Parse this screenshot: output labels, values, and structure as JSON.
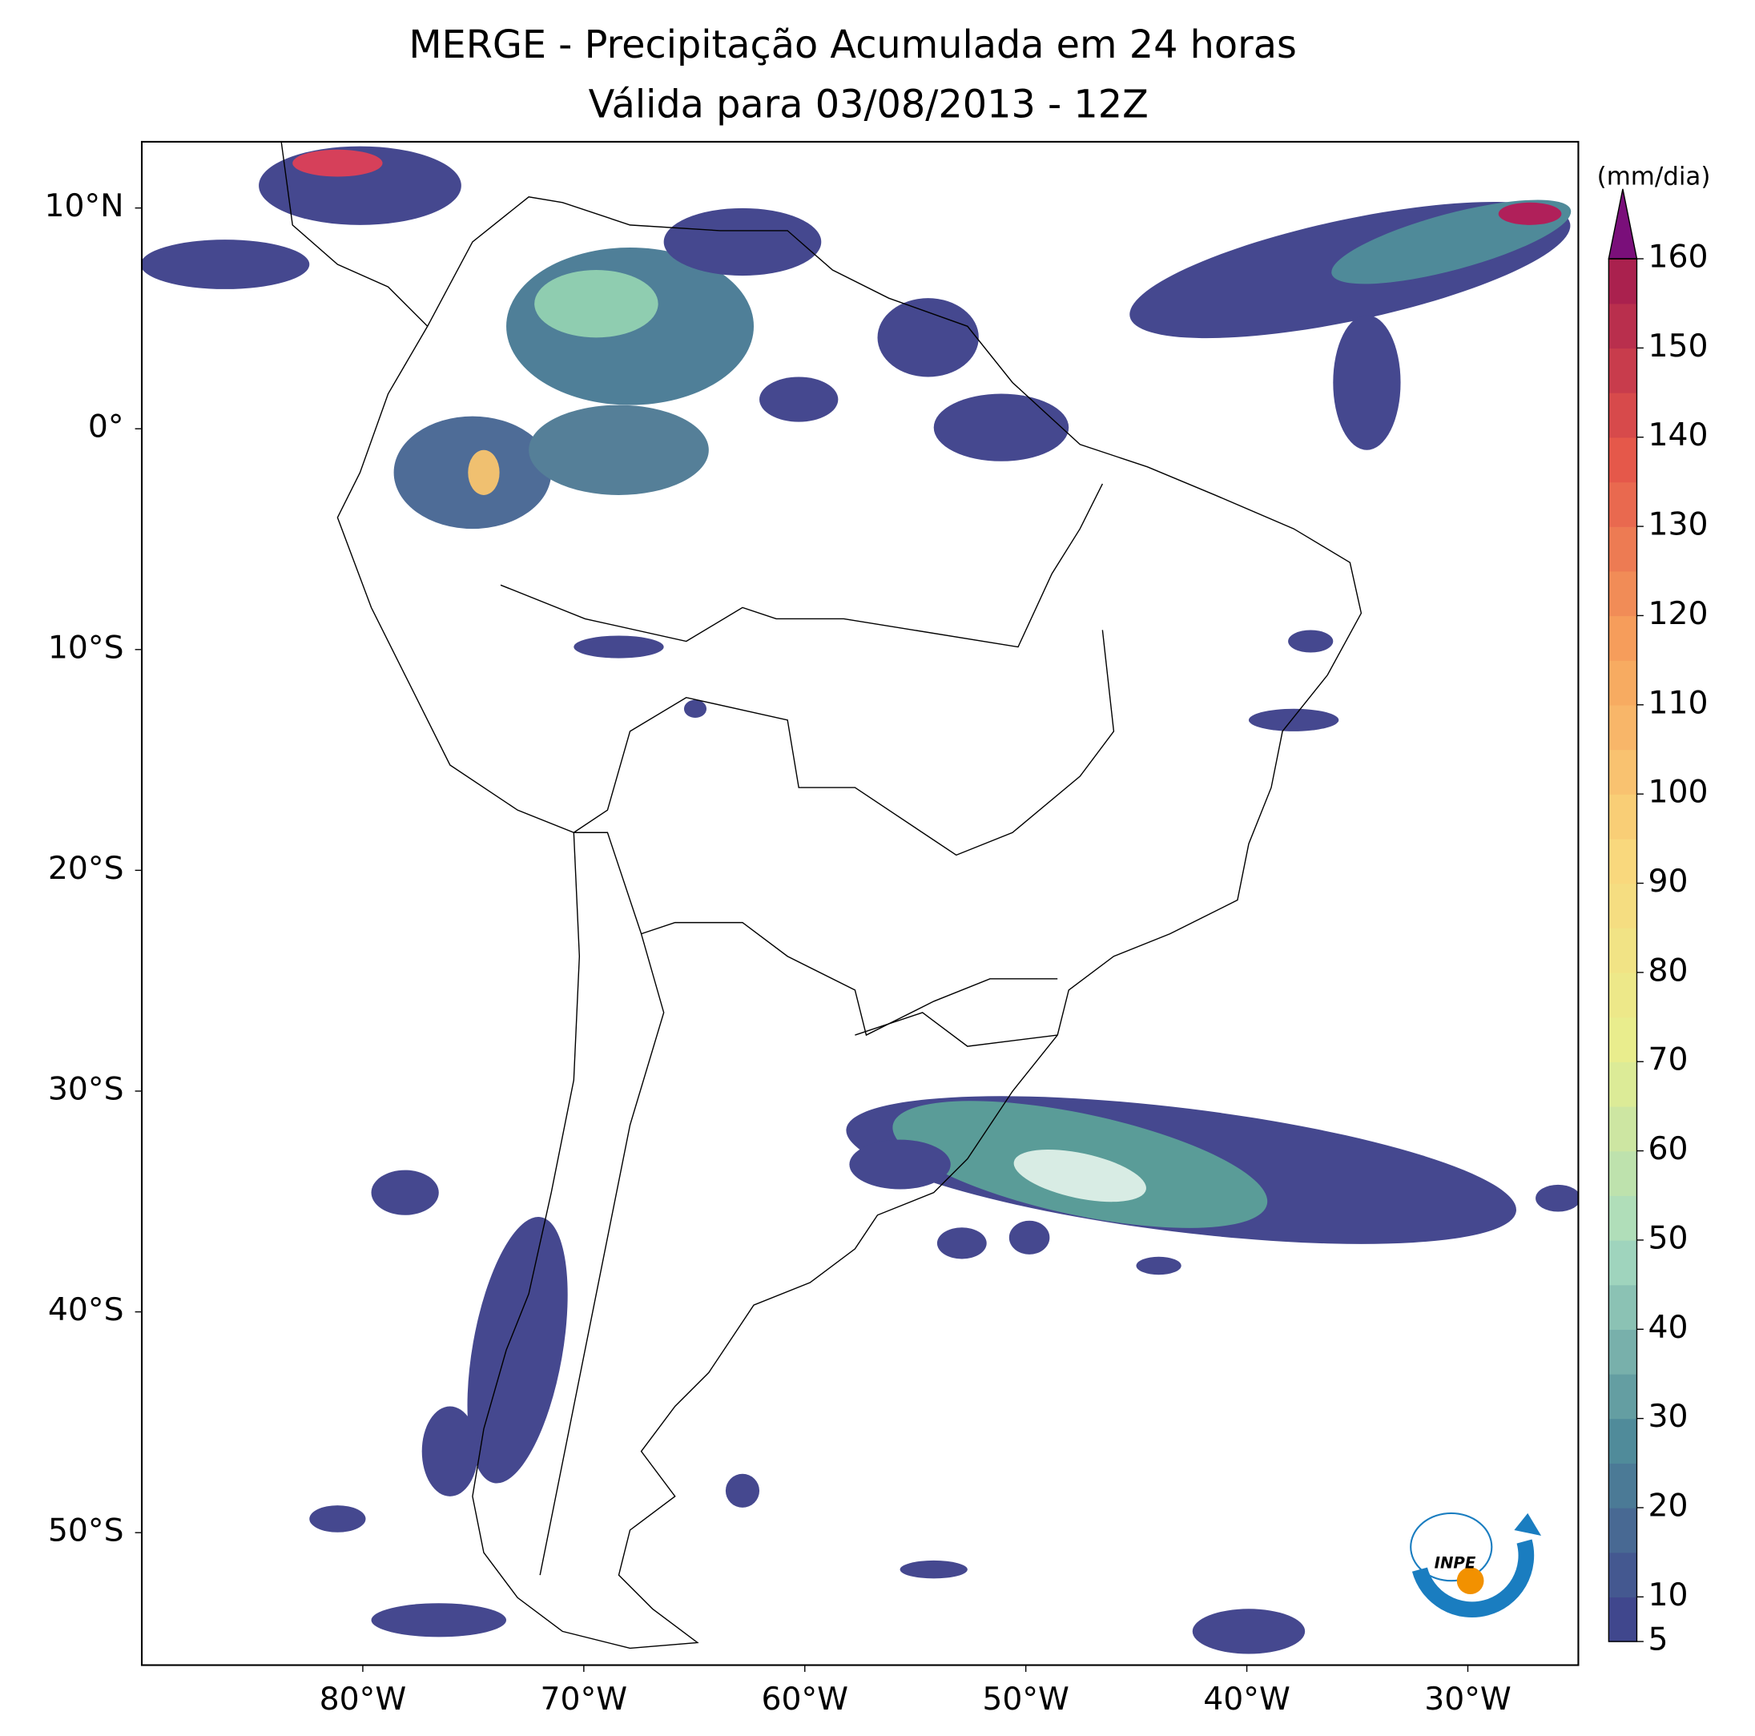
{
  "chart_data": {
    "type": "map",
    "title": "MERGE - Precipitação Acumulada em 24 horas",
    "subtitle": "Válida para 03/08/2013 - 12Z",
    "xlim": [
      -90,
      -25
    ],
    "ylim": [
      -56,
      13
    ],
    "xticks": [
      {
        "value": -80,
        "label": "80°W"
      },
      {
        "value": -70,
        "label": "70°W"
      },
      {
        "value": -60,
        "label": "60°W"
      },
      {
        "value": -50,
        "label": "50°W"
      },
      {
        "value": -40,
        "label": "40°W"
      },
      {
        "value": -30,
        "label": "30°W"
      }
    ],
    "yticks": [
      {
        "value": 10,
        "label": "10°N"
      },
      {
        "value": 0,
        "label": "0°"
      },
      {
        "value": -10,
        "label": "10°S"
      },
      {
        "value": -20,
        "label": "20°S"
      },
      {
        "value": -30,
        "label": "30°S"
      },
      {
        "value": -40,
        "label": "40°S"
      },
      {
        "value": -50,
        "label": "50°S"
      }
    ],
    "colorbar": {
      "label": "(mm/dia)",
      "range": [
        5,
        160
      ],
      "ticks": [
        5,
        10,
        20,
        30,
        40,
        50,
        60,
        70,
        80,
        90,
        100,
        110,
        120,
        130,
        140,
        150,
        160
      ],
      "colors": [
        "#3e3e8c",
        "#4f8a99",
        "#a6dbc0",
        "#e8ee8e",
        "#fad77c",
        "#f7a35d",
        "#e5574a",
        "#a31a4e"
      ],
      "extend_color": "#7a0f7a"
    },
    "logo": "INPE"
  }
}
